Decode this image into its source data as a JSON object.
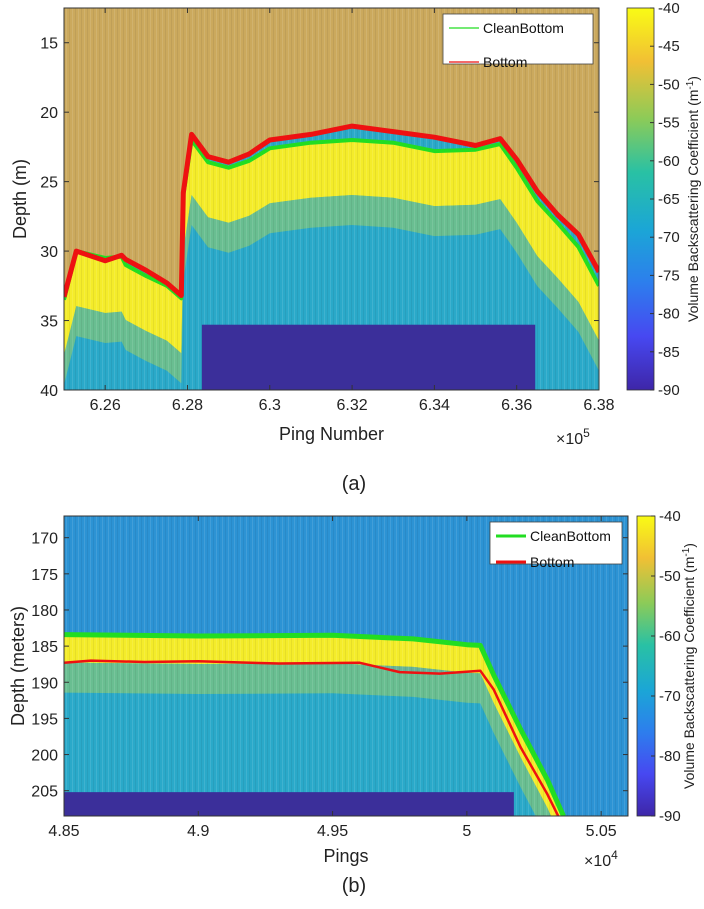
{
  "chart_data": [
    {
      "type": "heatmap",
      "caption": "(a)",
      "xlabel": "Ping Number",
      "ylabel": "Depth (m)",
      "x_multiplier": "×10",
      "x_multiplier_exp": "5",
      "xlim": [
        6.25,
        6.38
      ],
      "ylim": [
        12.5,
        40
      ],
      "y_reversed": true,
      "xticks": [
        {
          "value": 6.26,
          "label": "6.26"
        },
        {
          "value": 6.28,
          "label": "6.28"
        },
        {
          "value": 6.3,
          "label": "6.3"
        },
        {
          "value": 6.32,
          "label": "6.32"
        },
        {
          "value": 6.34,
          "label": "6.34"
        },
        {
          "value": 6.36,
          "label": "6.36"
        },
        {
          "value": 6.38,
          "label": "6.38"
        }
      ],
      "yticks": [
        {
          "value": 15,
          "label": "15"
        },
        {
          "value": 20,
          "label": "20"
        },
        {
          "value": 25,
          "label": "25"
        },
        {
          "value": 30,
          "label": "30"
        },
        {
          "value": 35,
          "label": "35"
        },
        {
          "value": 40,
          "label": "40"
        }
      ],
      "colorbar": {
        "label_main": "Volume Backscattering Coefficient (m",
        "label_sup": "-1",
        "label_end": ")",
        "range": [
          -90,
          -40
        ],
        "ticks": [
          {
            "value": -40,
            "label": "-40"
          },
          {
            "value": -45,
            "label": "-45"
          },
          {
            "value": -50,
            "label": "-50"
          },
          {
            "value": -55,
            "label": "-55"
          },
          {
            "value": -60,
            "label": "-60"
          },
          {
            "value": -65,
            "label": "-65"
          },
          {
            "value": -70,
            "label": "-70"
          },
          {
            "value": -75,
            "label": "-75"
          },
          {
            "value": -80,
            "label": "-80"
          },
          {
            "value": -85,
            "label": "-85"
          },
          {
            "value": -90,
            "label": "-90"
          }
        ]
      },
      "legend": {
        "position": "top-right",
        "entries": [
          {
            "name": "CleanBottom",
            "color": "#22dd22"
          },
          {
            "name": "Bottom",
            "color": "#ee1111"
          }
        ]
      },
      "upper_tint": "#e8a94a",
      "series": [
        {
          "name": "CleanBottom",
          "color": "#22dd22",
          "x": [
            6.25,
            6.253,
            6.26,
            6.264,
            6.265,
            6.27,
            6.275,
            6.2785,
            6.279,
            6.281,
            6.285,
            6.29,
            6.295,
            6.3,
            6.31,
            6.32,
            6.33,
            6.34,
            6.35,
            6.356,
            6.36,
            6.365,
            6.37,
            6.375,
            6.38
          ],
          "y": [
            33.5,
            30.0,
            30.5,
            30.4,
            31.0,
            31.8,
            32.5,
            33.4,
            26.0,
            22.0,
            23.6,
            24.0,
            23.5,
            22.6,
            22.2,
            22.0,
            22.2,
            22.8,
            22.7,
            22.3,
            24.0,
            26.4,
            28.0,
            29.7,
            32.5
          ]
        },
        {
          "name": "Bottom",
          "color": "#ee1111",
          "x": [
            6.25,
            6.253,
            6.26,
            6.264,
            6.265,
            6.27,
            6.275,
            6.2785,
            6.279,
            6.281,
            6.285,
            6.29,
            6.295,
            6.3,
            6.31,
            6.32,
            6.33,
            6.34,
            6.35,
            6.356,
            6.36,
            6.365,
            6.37,
            6.375,
            6.38
          ],
          "y": [
            33.3,
            30.0,
            30.7,
            30.3,
            30.6,
            31.4,
            32.3,
            33.2,
            25.8,
            21.6,
            23.2,
            23.6,
            23.0,
            22.0,
            21.6,
            21.0,
            21.4,
            21.8,
            22.4,
            21.9,
            23.4,
            25.7,
            27.4,
            28.8,
            31.5
          ]
        }
      ],
      "no_data_region": {
        "x": [
          6.2835,
          6.3645
        ],
        "y": [
          35.3,
          40
        ],
        "color": "#3b2f9a"
      }
    },
    {
      "type": "heatmap",
      "caption": "(b)",
      "xlabel": "Pings",
      "ylabel": "Depth (meters)",
      "x_multiplier": "×10",
      "x_multiplier_exp": "4",
      "xlim": [
        4.85,
        5.06
      ],
      "ylim": [
        167,
        208.5
      ],
      "y_reversed": true,
      "xticks": [
        {
          "value": 4.85,
          "label": "4.85"
        },
        {
          "value": 4.9,
          "label": "4.9"
        },
        {
          "value": 4.95,
          "label": "4.95"
        },
        {
          "value": 5.0,
          "label": "5"
        },
        {
          "value": 5.05,
          "label": "5.05"
        }
      ],
      "yticks": [
        {
          "value": 170,
          "label": "170"
        },
        {
          "value": 175,
          "label": "175"
        },
        {
          "value": 180,
          "label": "180"
        },
        {
          "value": 185,
          "label": "185"
        },
        {
          "value": 190,
          "label": "190"
        },
        {
          "value": 195,
          "label": "195"
        },
        {
          "value": 200,
          "label": "200"
        },
        {
          "value": 205,
          "label": "205"
        }
      ],
      "colorbar": {
        "label_main": "Volume Backscattering Coefficient (m",
        "label_sup": "-1",
        "label_end": ")",
        "range": [
          -90,
          -40
        ],
        "ticks": [
          {
            "value": -40,
            "label": "-40"
          },
          {
            "value": -50,
            "label": "-50"
          },
          {
            "value": -60,
            "label": "-60"
          },
          {
            "value": -70,
            "label": "-70"
          },
          {
            "value": -80,
            "label": "-80"
          },
          {
            "value": -90,
            "label": "-90"
          }
        ]
      },
      "legend": {
        "position": "top-right",
        "entries": [
          {
            "name": "CleanBottom",
            "color": "#22dd22"
          },
          {
            "name": "Bottom",
            "color": "#ee1111"
          }
        ]
      },
      "upper_tint": "#2d8fd6",
      "series": [
        {
          "name": "CleanBottom",
          "color": "#22dd22",
          "x": [
            4.85,
            4.9,
            4.95,
            4.98,
            5.0,
            5.005,
            5.01,
            5.02,
            5.03,
            5.036
          ],
          "y": [
            183.4,
            183.6,
            183.5,
            184.0,
            184.8,
            184.9,
            189.0,
            196.5,
            203.5,
            208.5
          ]
        },
        {
          "name": "Bottom",
          "color": "#ee1111",
          "x": [
            4.85,
            4.86,
            4.88,
            4.9,
            4.93,
            4.96,
            4.975,
            4.99,
            5.005,
            5.01,
            5.02,
            5.03,
            5.034
          ],
          "y": [
            187.3,
            187.0,
            187.2,
            187.1,
            187.4,
            187.3,
            188.6,
            188.8,
            188.4,
            191.0,
            199.0,
            205.5,
            208.5
          ]
        }
      ],
      "no_data_region": {
        "x": [
          4.85,
          5.0175
        ],
        "y": [
          205.2,
          208.5
        ],
        "color": "#3b2f9a"
      }
    }
  ]
}
